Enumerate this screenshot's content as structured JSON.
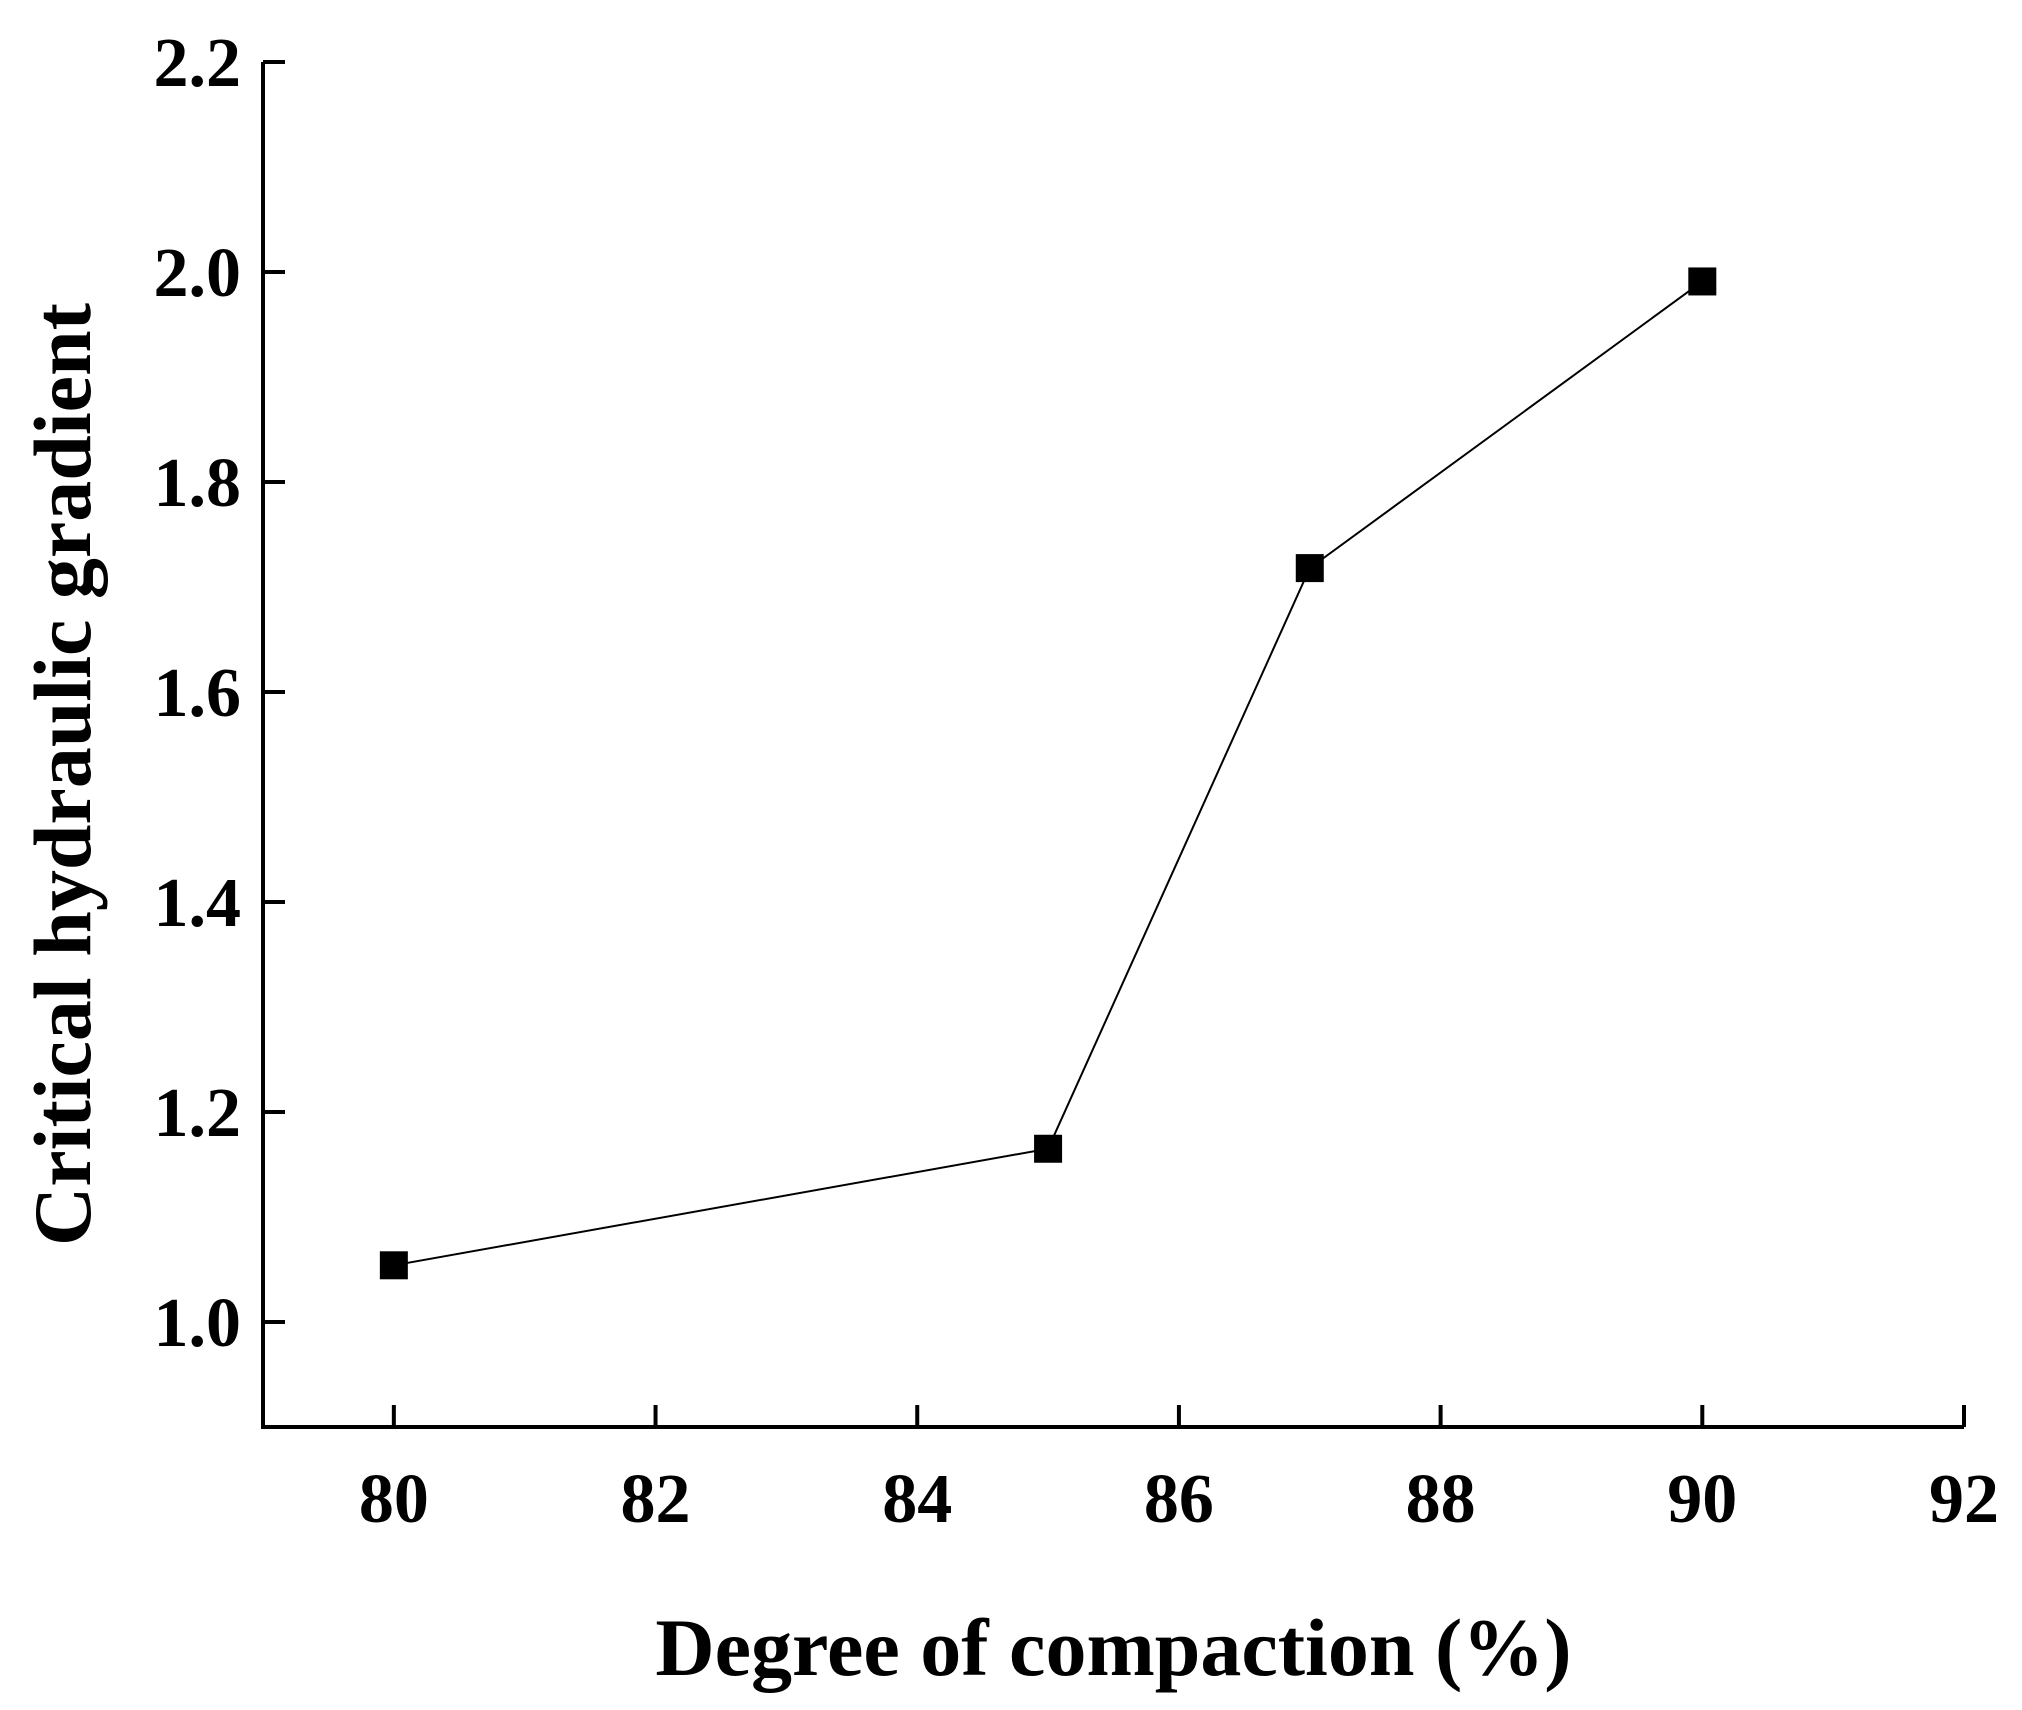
{
  "chart_data": {
    "type": "line",
    "title": "",
    "xlabel": "Degree of compaction (%)",
    "ylabel": "Critical hydraulic gradient",
    "xlim": [
      79,
      92
    ],
    "ylim": [
      0.9,
      2.2
    ],
    "xticks": [
      80,
      82,
      84,
      86,
      88,
      90,
      92
    ],
    "yticks": [
      1.0,
      1.2,
      1.4,
      1.6,
      1.8,
      2.0,
      2.2
    ],
    "xtick_labels": [
      "80",
      "82",
      "84",
      "86",
      "88",
      "90",
      "92"
    ],
    "ytick_labels": [
      "1.0",
      "1.2",
      "1.4",
      "1.6",
      "1.8",
      "2.0",
      "2.2"
    ],
    "grid": false,
    "marker": "square",
    "series": [
      {
        "x": [
          80,
          85,
          87,
          90
        ],
        "y": [
          1.054,
          1.165,
          1.718,
          1.991
        ],
        "color": "#000000"
      }
    ]
  }
}
